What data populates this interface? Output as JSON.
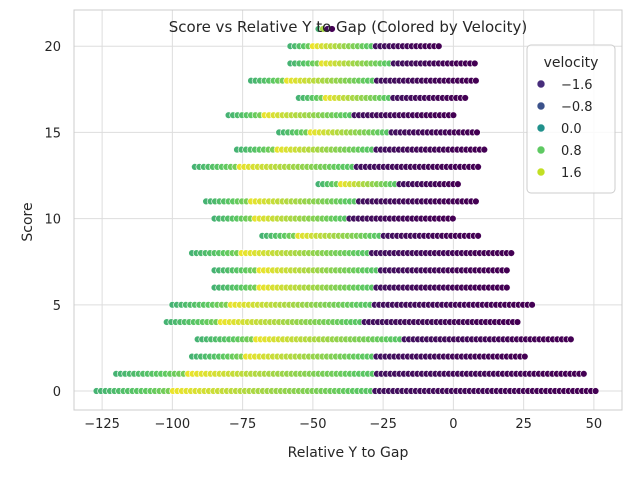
{
  "chart_data": {
    "type": "scatter",
    "title": "Score vs Relative Y to Gap (Colored by Velocity)",
    "xlabel": "Relative Y to Gap",
    "ylabel": "Score",
    "xlim": [
      -135,
      60
    ],
    "ylim": [
      -1.1,
      22.1
    ],
    "xticks": [
      -125,
      -100,
      -75,
      -50,
      -25,
      0,
      25,
      50
    ],
    "xtick_labels": [
      "−125",
      "−100",
      "−75",
      "−50",
      "−25",
      "0",
      "25",
      "50"
    ],
    "yticks": [
      0,
      5,
      10,
      15,
      20
    ],
    "ytick_labels": [
      "0",
      "5",
      "10",
      "15",
      "20"
    ],
    "grid": true,
    "legend": {
      "title": "velocity",
      "position": "top-right",
      "entries": [
        {
          "label": "−1.6",
          "value": -1.6,
          "color": "#472d7b"
        },
        {
          "label": "−0.8",
          "value": -0.8,
          "color": "#3b528b"
        },
        {
          "label": "0.0",
          "value": 0.0,
          "color": "#21918c"
        },
        {
          "label": "0.8",
          "value": 0.8,
          "color": "#5ec962"
        },
        {
          "label": "1.6",
          "value": 1.6,
          "color": "#c2df23"
        }
      ]
    },
    "colormap": "viridis",
    "rows": [
      {
        "score": 0,
        "x_min": -127,
        "x_max": 51,
        "step": 1.6
      },
      {
        "score": 1,
        "x_min": -120,
        "x_max": 47,
        "step": 1.6
      },
      {
        "score": 2,
        "x_min": -93,
        "x_max": 26,
        "step": 1.6
      },
      {
        "score": 3,
        "x_min": -91,
        "x_max": 42,
        "step": 1.6
      },
      {
        "score": 4,
        "x_min": -102,
        "x_max": 24,
        "step": 1.6
      },
      {
        "score": 5,
        "x_min": -100,
        "x_max": 29,
        "step": 1.6
      },
      {
        "score": 6,
        "x_min": -85,
        "x_max": 19,
        "step": 1.6
      },
      {
        "score": 7,
        "x_min": -85,
        "x_max": 20,
        "step": 1.6
      },
      {
        "score": 8,
        "x_min": -93,
        "x_max": 22,
        "step": 1.6
      },
      {
        "score": 9,
        "x_min": -68,
        "x_max": 9,
        "step": 1.6
      },
      {
        "score": 10,
        "x_min": -85,
        "x_max": 1,
        "step": 1.6
      },
      {
        "score": 11,
        "x_min": -88,
        "x_max": 9,
        "step": 1.6
      },
      {
        "score": 12,
        "x_min": -48,
        "x_max": 3,
        "step": 1.6
      },
      {
        "score": 13,
        "x_min": -92,
        "x_max": 10,
        "step": 1.6
      },
      {
        "score": 14,
        "x_min": -77,
        "x_max": 11,
        "step": 1.6
      },
      {
        "score": 15,
        "x_min": -62,
        "x_max": 9,
        "step": 1.6
      },
      {
        "score": 16,
        "x_min": -80,
        "x_max": 0,
        "step": 1.6
      },
      {
        "score": 17,
        "x_min": -55,
        "x_max": 5,
        "step": 1.6
      },
      {
        "score": 18,
        "x_min": -72,
        "x_max": 9,
        "step": 1.6
      },
      {
        "score": 19,
        "x_min": -58,
        "x_max": 8,
        "step": 1.6
      },
      {
        "score": 20,
        "x_min": -58,
        "x_max": -5,
        "step": 1.6
      },
      {
        "score": 21,
        "x_min": -48,
        "x_max": -43,
        "step": 1.6
      }
    ]
  }
}
